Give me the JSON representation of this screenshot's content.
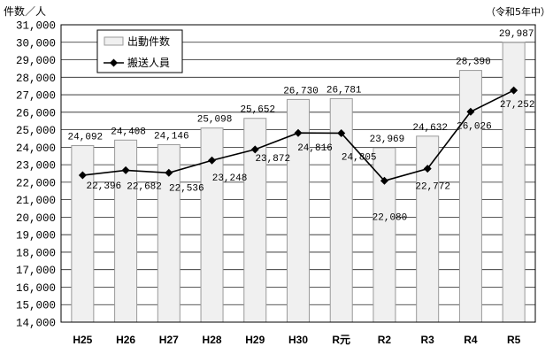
{
  "chart_data": {
    "type": "bar",
    "categories": [
      "H25",
      "H26",
      "H27",
      "H28",
      "H29",
      "H30",
      "R元",
      "R2",
      "R3",
      "R4",
      "R5"
    ],
    "series": [
      {
        "name": "出動件数",
        "type": "bar",
        "values": [
          24092,
          24408,
          24146,
          25098,
          25652,
          26730,
          26781,
          23969,
          24632,
          28390,
          29987
        ],
        "color": "#f0f0f0",
        "edge_color": "#9a9a9a"
      },
      {
        "name": "搬送人員",
        "type": "line",
        "marker": "diamond",
        "values": [
          22396,
          22682,
          22536,
          23248,
          23872,
          24816,
          24805,
          22080,
          22772,
          26026,
          27252
        ],
        "color": "#000000"
      }
    ],
    "ylabel": "件数／人",
    "annotation": "（令和5年中）",
    "ylim": [
      14000,
      31000
    ],
    "yticks": [
      14000,
      15000,
      16000,
      17000,
      18000,
      19000,
      20000,
      21000,
      22000,
      23000,
      24000,
      25000,
      26000,
      27000,
      28000,
      29000,
      30000,
      31000
    ],
    "grid": true,
    "legend_position": "top-left"
  }
}
